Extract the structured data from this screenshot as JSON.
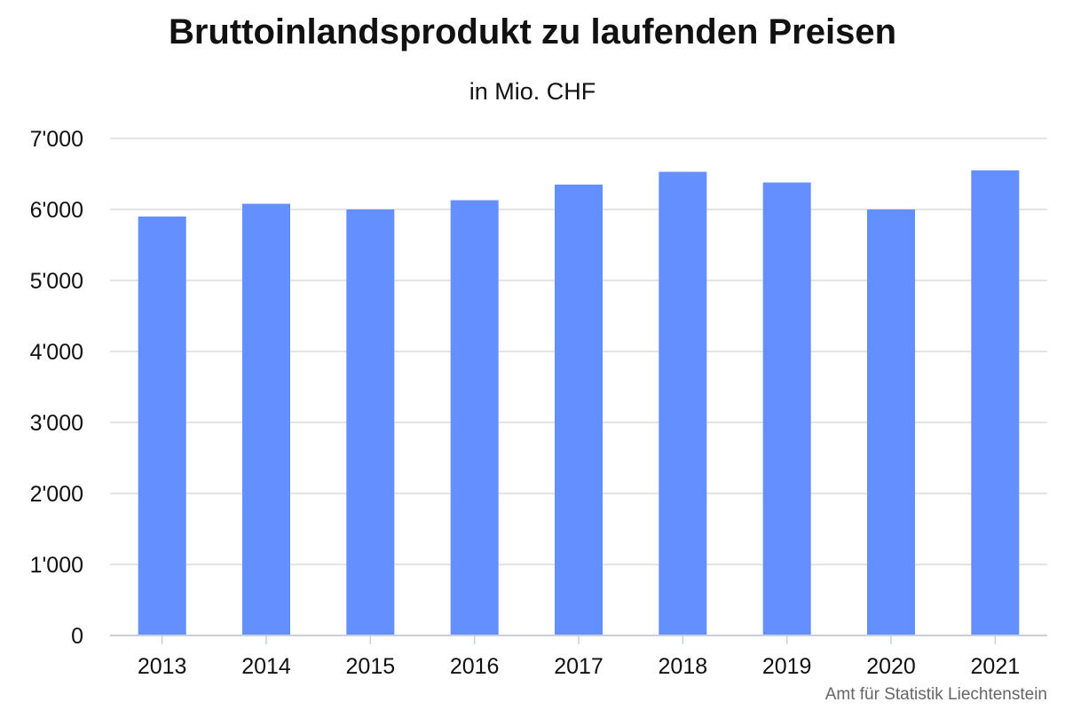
{
  "chart_data": {
    "type": "bar",
    "title": "Bruttoinlandsprodukt zu laufenden Preisen",
    "subtitle": "in Mio. CHF",
    "categories": [
      "2013",
      "2014",
      "2015",
      "2016",
      "2017",
      "2018",
      "2019",
      "2020",
      "2021"
    ],
    "values": [
      5900,
      6080,
      6000,
      6130,
      6350,
      6530,
      6380,
      6000,
      6550
    ],
    "ylim": [
      0,
      7000
    ],
    "yticks": [
      0,
      1000,
      2000,
      3000,
      4000,
      5000,
      6000,
      7000
    ],
    "ytick_labels": [
      "0",
      "1'000",
      "2'000",
      "3'000",
      "4'000",
      "5'000",
      "6'000",
      "7'000"
    ],
    "grid": true,
    "legend": "none",
    "bar_color": "#648fff",
    "source": "Amt für Statistik Liechtenstein"
  }
}
